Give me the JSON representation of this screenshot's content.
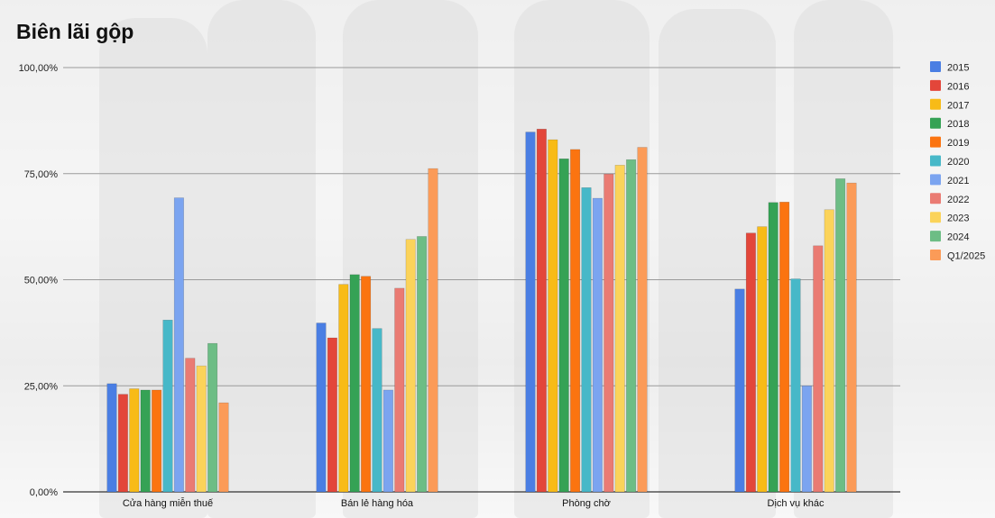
{
  "chart_data": {
    "type": "bar",
    "title": "Biên lãi gộp",
    "xlabel": "",
    "ylabel": "",
    "ylim": [
      0,
      100
    ],
    "grid": true,
    "legend": "right",
    "yticks": [
      "0,00%",
      "25,00%",
      "50,00%",
      "75,00%",
      "100,00%"
    ],
    "yticks_values": [
      0,
      25,
      50,
      75,
      100
    ],
    "categories": [
      "Cửa hàng miễn thuế",
      "Bán lẻ hàng hóa",
      "Phòng chờ",
      "Dịch vụ khác"
    ],
    "series": [
      {
        "name": "2015",
        "color": "#4a7ee3",
        "values": [
          25.5,
          39.8,
          84.8,
          47.8
        ]
      },
      {
        "name": "2016",
        "color": "#e3463a",
        "values": [
          23.0,
          36.3,
          85.5,
          61.0
        ]
      },
      {
        "name": "2017",
        "color": "#f8bb17",
        "values": [
          24.3,
          48.9,
          83.0,
          62.5
        ]
      },
      {
        "name": "2018",
        "color": "#35a255",
        "values": [
          24.0,
          51.2,
          78.5,
          68.2
        ]
      },
      {
        "name": "2019",
        "color": "#fb7410",
        "values": [
          24.0,
          50.8,
          80.7,
          68.3
        ]
      },
      {
        "name": "2020",
        "color": "#47b8c8",
        "values": [
          40.5,
          38.5,
          71.7,
          50.2
        ]
      },
      {
        "name": "2021",
        "color": "#7ba4f0",
        "values": [
          69.3,
          24.0,
          69.2,
          25.0
        ]
      },
      {
        "name": "2022",
        "color": "#ea7b73",
        "values": [
          31.5,
          48.0,
          74.9,
          58.0
        ]
      },
      {
        "name": "2023",
        "color": "#fbd35a",
        "values": [
          29.7,
          59.5,
          77.0,
          66.5
        ]
      },
      {
        "name": "2024",
        "color": "#6dbd85",
        "values": [
          35.0,
          60.2,
          78.3,
          73.8
        ]
      },
      {
        "name": "Q1/2025",
        "color": "#fb9b58",
        "values": [
          21.0,
          76.2,
          81.2,
          72.8
        ]
      }
    ]
  }
}
